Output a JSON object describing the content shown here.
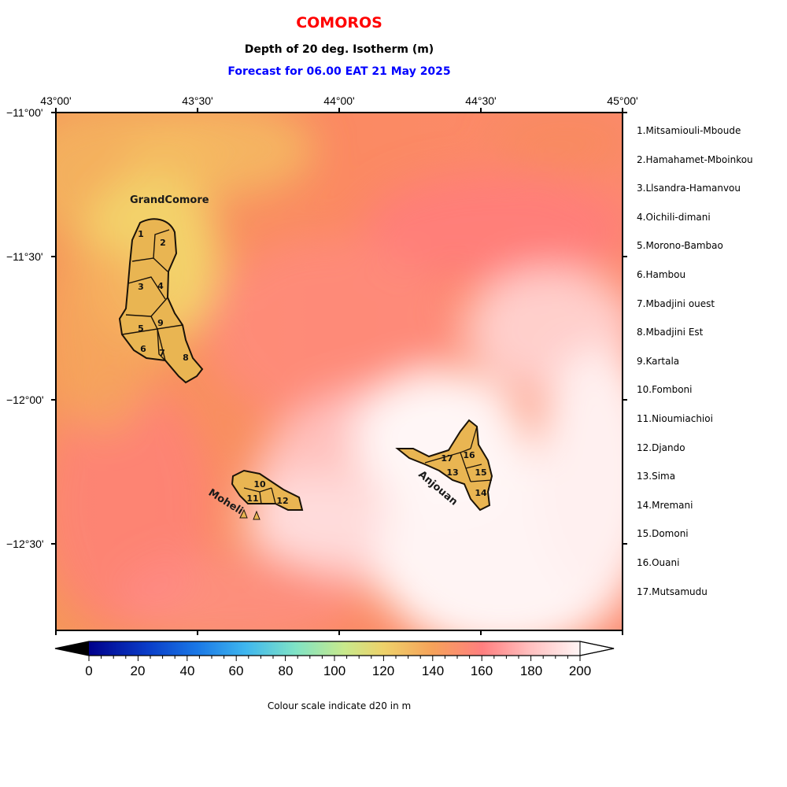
{
  "header": {
    "country": "COMOROS",
    "subtitle": "Depth of 20 deg. Isotherm (m)",
    "forecast": "Forecast for  06.00 EAT 21 May 2025",
    "country_color": "#ff0000",
    "forecast_color": "#0000ff"
  },
  "axes": {
    "lon_labels": [
      "43°00'",
      "43°30'",
      "44°00'",
      "44°30'",
      "45°00'"
    ],
    "lat_labels": [
      "−11°00'",
      "−11°30'",
      "−12°00'",
      "−12°30'"
    ]
  },
  "islands": {
    "grand_comore": "GrandComore",
    "moheli": "Moheli",
    "anjouan": "Anjouan"
  },
  "districts": [
    {
      "num": "1",
      "name": "1.Mitsamiouli-Mboude"
    },
    {
      "num": "2",
      "name": "2.Hamahamet-Mboinkou"
    },
    {
      "num": "3",
      "name": "3.Llsandra-Hamanvou"
    },
    {
      "num": "4",
      "name": "4.Oichili-dimani"
    },
    {
      "num": "5",
      "name": "5.Morono-Bambao"
    },
    {
      "num": "6",
      "name": "6.Hambou"
    },
    {
      "num": "7",
      "name": "7.Mbadjini ouest"
    },
    {
      "num": "8",
      "name": "8.Mbadjini Est"
    },
    {
      "num": "9",
      "name": "9.Kartala"
    },
    {
      "num": "10",
      "name": "10.Fomboni"
    },
    {
      "num": "11",
      "name": "11.Nioumiachioi"
    },
    {
      "num": "12",
      "name": "12.Djando"
    },
    {
      "num": "13",
      "name": "13.Sima"
    },
    {
      "num": "14",
      "name": "14.Mremani"
    },
    {
      "num": "15",
      "name": "15.Domoni"
    },
    {
      "num": "16",
      "name": "16.Ouani"
    },
    {
      "num": "17",
      "name": "17.Mutsamudu"
    }
  ],
  "colorbar": {
    "ticks": [
      "0",
      "20",
      "40",
      "60",
      "80",
      "100",
      "120",
      "140",
      "160",
      "180",
      "200"
    ],
    "caption": "Colour scale indicate d20 in m"
  },
  "colors": {
    "land": "#e9b552",
    "sea_shallow": "#f2ca66",
    "sea_mid": "#f98a5a",
    "sea_deep": "#ff7f7f",
    "sea_deepest": "#fff5f5"
  }
}
